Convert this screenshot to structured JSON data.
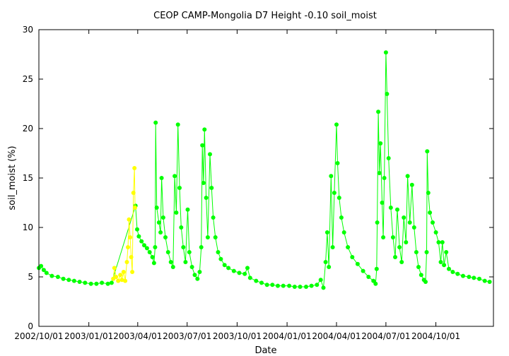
{
  "chart_data": {
    "type": "scatter",
    "title": "CEOP CAMP-Mongolia D7 Height -0.10 soil_moist",
    "xlabel": "Date",
    "ylabel": "soil_moist (%)",
    "ylim": [
      0,
      30
    ],
    "yticks": [
      0,
      5,
      10,
      15,
      20,
      25,
      30
    ],
    "xlim": [
      "2002/10/01",
      "2005/01/15"
    ],
    "xticks": [
      {
        "date": "2002/10/01",
        "label": "2002/10/01"
      },
      {
        "date": "2003/01/01",
        "label": "2003/01/01"
      },
      {
        "date": "2003/04/01",
        "label": "2003/04/01"
      },
      {
        "date": "2003/07/01",
        "label": "2003/07/01"
      },
      {
        "date": "2003/10/01",
        "label": "2003/10/01"
      },
      {
        "date": "2004/01/01",
        "label": "2004/01/01"
      },
      {
        "date": "2004/04/01",
        "label": "2004/04/01"
      },
      {
        "date": "2004/07/01",
        "label": "2004/07/01"
      },
      {
        "date": "2004/10/01",
        "label": "2004/10/01"
      }
    ],
    "series": [
      {
        "name": "soil_moist (good)",
        "color": "#00ff00",
        "points": [
          [
            "2002/10/01",
            5.9
          ],
          [
            "2002/10/05",
            6.1
          ],
          [
            "2002/10/10",
            5.7
          ],
          [
            "2002/10/15",
            5.4
          ],
          [
            "2002/10/25",
            5.1
          ],
          [
            "2002/11/05",
            5.0
          ],
          [
            "2002/11/15",
            4.8
          ],
          [
            "2002/11/25",
            4.7
          ],
          [
            "2002/12/05",
            4.6
          ],
          [
            "2002/12/15",
            4.5
          ],
          [
            "2002/12/25",
            4.4
          ],
          [
            "2003/01/05",
            4.3
          ],
          [
            "2003/01/15",
            4.3
          ],
          [
            "2003/01/25",
            4.4
          ],
          [
            "2003/02/05",
            4.3
          ],
          [
            "2003/02/12",
            4.4
          ],
          [
            "2003/03/28",
            12.2
          ],
          [
            "2003/03/31",
            9.8
          ],
          [
            "2003/04/03",
            9.1
          ],
          [
            "2003/04/08",
            8.6
          ],
          [
            "2003/04/13",
            8.2
          ],
          [
            "2003/04/18",
            7.9
          ],
          [
            "2003/04/23",
            7.5
          ],
          [
            "2003/04/28",
            7.0
          ],
          [
            "2003/05/01",
            6.4
          ],
          [
            "2003/05/03",
            8.0
          ],
          [
            "2003/05/04",
            20.6
          ],
          [
            "2003/05/06",
            12.0
          ],
          [
            "2003/05/10",
            10.5
          ],
          [
            "2003/05/13",
            9.5
          ],
          [
            "2003/05/15",
            15.0
          ],
          [
            "2003/05/18",
            11.0
          ],
          [
            "2003/05/22",
            9.0
          ],
          [
            "2003/05/27",
            7.5
          ],
          [
            "2003/06/01",
            6.5
          ],
          [
            "2003/06/05",
            6.0
          ],
          [
            "2003/06/08",
            15.2
          ],
          [
            "2003/06/11",
            11.5
          ],
          [
            "2003/06/14",
            20.4
          ],
          [
            "2003/06/17",
            14.0
          ],
          [
            "2003/06/20",
            10.0
          ],
          [
            "2003/06/24",
            8.0
          ],
          [
            "2003/06/28",
            6.5
          ],
          [
            "2003/07/02",
            11.8
          ],
          [
            "2003/07/05",
            7.5
          ],
          [
            "2003/07/10",
            6.0
          ],
          [
            "2003/07/15",
            5.2
          ],
          [
            "2003/07/20",
            4.8
          ],
          [
            "2003/07/24",
            5.5
          ],
          [
            "2003/07/27",
            8.0
          ],
          [
            "2003/07/29",
            18.3
          ],
          [
            "2003/07/31",
            14.5
          ],
          [
            "2003/08/02",
            19.9
          ],
          [
            "2003/08/05",
            13.0
          ],
          [
            "2003/08/08",
            9.0
          ],
          [
            "2003/08/12",
            17.4
          ],
          [
            "2003/08/15",
            14.0
          ],
          [
            "2003/08/18",
            11.0
          ],
          [
            "2003/08/22",
            9.0
          ],
          [
            "2003/08/27",
            7.5
          ],
          [
            "2003/09/01",
            6.8
          ],
          [
            "2003/09/08",
            6.2
          ],
          [
            "2003/09/15",
            5.9
          ],
          [
            "2003/09/25",
            5.6
          ],
          [
            "2003/10/05",
            5.4
          ],
          [
            "2003/10/15",
            5.3
          ],
          [
            "2003/10/20",
            5.9
          ],
          [
            "2003/10/25",
            4.9
          ],
          [
            "2003/11/05",
            4.6
          ],
          [
            "2003/11/15",
            4.4
          ],
          [
            "2003/11/25",
            4.2
          ],
          [
            "2003/12/05",
            4.2
          ],
          [
            "2003/12/15",
            4.1
          ],
          [
            "2003/12/25",
            4.1
          ],
          [
            "2004/01/05",
            4.1
          ],
          [
            "2004/01/15",
            4.0
          ],
          [
            "2004/01/25",
            4.0
          ],
          [
            "2004/02/05",
            4.0
          ],
          [
            "2004/02/15",
            4.1
          ],
          [
            "2004/02/25",
            4.2
          ],
          [
            "2004/03/03",
            4.7
          ],
          [
            "2004/03/08",
            3.9
          ],
          [
            "2004/03/12",
            6.5
          ],
          [
            "2004/03/15",
            9.5
          ],
          [
            "2004/03/18",
            6.0
          ],
          [
            "2004/03/22",
            15.2
          ],
          [
            "2004/03/25",
            8.0
          ],
          [
            "2004/03/28",
            13.5
          ],
          [
            "2004/04/01",
            20.4
          ],
          [
            "2004/04/03",
            16.5
          ],
          [
            "2004/04/06",
            13.0
          ],
          [
            "2004/04/10",
            11.0
          ],
          [
            "2004/04/15",
            9.5
          ],
          [
            "2004/04/22",
            8.0
          ],
          [
            "2004/04/30",
            7.0
          ],
          [
            "2004/05/10",
            6.3
          ],
          [
            "2004/05/20",
            5.6
          ],
          [
            "2004/05/30",
            5.0
          ],
          [
            "2004/06/08",
            4.6
          ],
          [
            "2004/06/12",
            4.3
          ],
          [
            "2004/06/14",
            5.8
          ],
          [
            "2004/06/15",
            10.5
          ],
          [
            "2004/06/17",
            21.7
          ],
          [
            "2004/06/19",
            15.5
          ],
          [
            "2004/06/21",
            18.5
          ],
          [
            "2004/06/24",
            12.5
          ],
          [
            "2004/06/26",
            9.0
          ],
          [
            "2004/06/28",
            15.0
          ],
          [
            "2004/07/01",
            27.7
          ],
          [
            "2004/07/03",
            23.5
          ],
          [
            "2004/07/06",
            17.0
          ],
          [
            "2004/07/10",
            12.0
          ],
          [
            "2004/07/14",
            9.0
          ],
          [
            "2004/07/18",
            7.0
          ],
          [
            "2004/07/22",
            11.8
          ],
          [
            "2004/07/26",
            8.0
          ],
          [
            "2004/07/30",
            6.5
          ],
          [
            "2004/08/03",
            11.0
          ],
          [
            "2004/08/07",
            8.5
          ],
          [
            "2004/08/10",
            15.2
          ],
          [
            "2004/08/14",
            10.5
          ],
          [
            "2004/08/18",
            14.3
          ],
          [
            "2004/08/22",
            10.0
          ],
          [
            "2004/08/26",
            7.5
          ],
          [
            "2004/08/30",
            6.0
          ],
          [
            "2004/09/04",
            5.2
          ],
          [
            "2004/09/09",
            4.7
          ],
          [
            "2004/09/12",
            4.5
          ],
          [
            "2004/09/14",
            7.5
          ],
          [
            "2004/09/15",
            17.7
          ],
          [
            "2004/09/17",
            13.5
          ],
          [
            "2004/09/20",
            11.5
          ],
          [
            "2004/09/25",
            10.5
          ],
          [
            "2004/10/01",
            9.5
          ],
          [
            "2004/10/06",
            8.5
          ],
          [
            "2004/10/10",
            6.5
          ],
          [
            "2004/10/13",
            8.5
          ],
          [
            "2004/10/16",
            6.2
          ],
          [
            "2004/10/20",
            7.5
          ],
          [
            "2004/10/25",
            5.8
          ],
          [
            "2004/11/01",
            5.5
          ],
          [
            "2004/11/10",
            5.3
          ],
          [
            "2004/11/20",
            5.1
          ],
          [
            "2004/12/01",
            5.0
          ],
          [
            "2004/12/10",
            4.9
          ],
          [
            "2004/12/20",
            4.8
          ],
          [
            "2004/12/30",
            4.6
          ],
          [
            "2005/01/08",
            4.5
          ]
        ]
      },
      {
        "name": "soil_moist (flagged)",
        "color": "#ffff00",
        "points": [
          [
            "2003/02/15",
            4.8
          ],
          [
            "2003/02/17",
            5.9
          ],
          [
            "2003/02/20",
            5.0
          ],
          [
            "2003/02/24",
            4.6
          ],
          [
            "2003/02/28",
            5.2
          ],
          [
            "2003/03/03",
            4.7
          ],
          [
            "2003/03/06",
            5.5
          ],
          [
            "2003/03/09",
            4.6
          ],
          [
            "2003/03/12",
            6.5
          ],
          [
            "2003/03/14",
            8.0
          ],
          [
            "2003/03/16",
            10.8
          ],
          [
            "2003/03/18",
            9.0
          ],
          [
            "2003/03/20",
            7.0
          ],
          [
            "2003/03/22",
            5.5
          ],
          [
            "2003/03/24",
            13.5
          ],
          [
            "2003/03/26",
            16.0
          ],
          [
            "2003/03/27",
            12.0
          ]
        ]
      }
    ]
  }
}
